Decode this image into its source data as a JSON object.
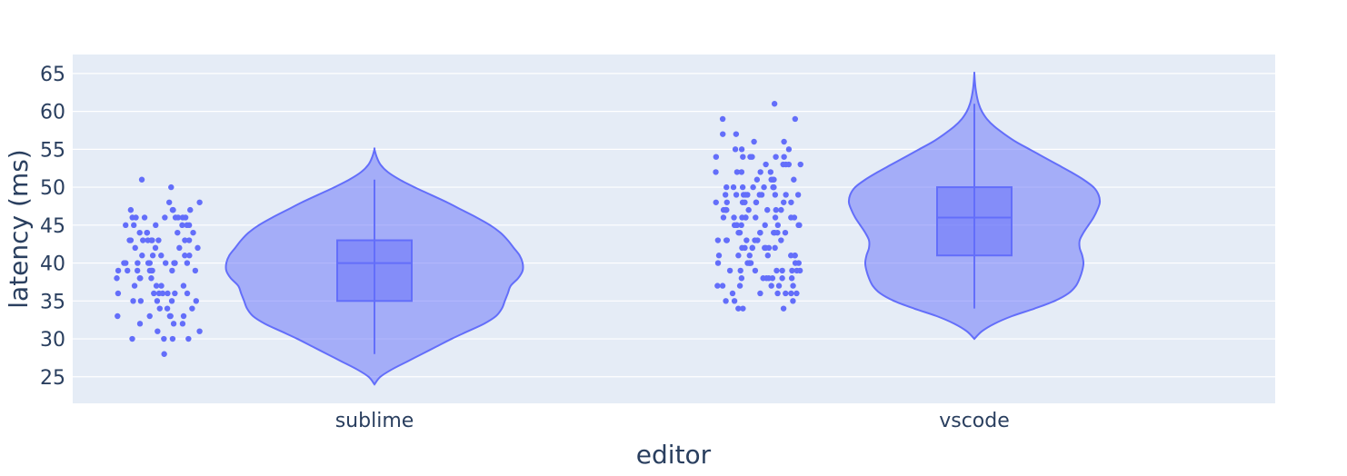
{
  "chart_data": {
    "type": "violin",
    "xlabel": "editor",
    "ylabel": "latency (ms)",
    "categories": [
      "sublime",
      "vscode"
    ],
    "yticks": [
      25,
      30,
      35,
      40,
      45,
      50,
      55,
      60,
      65
    ],
    "yticklabels": [
      "25",
      "30",
      "35",
      "40",
      "45",
      "50",
      "55",
      "60",
      "65"
    ],
    "ylim": [
      21.5,
      67.5
    ],
    "grid": true,
    "show_points": true,
    "show_box": true,
    "colors": {
      "background": "#e5ecf6",
      "gridline": "#ffffff",
      "violin_fill": "#636efa",
      "violin_line": "#636efa",
      "points": "#636efa",
      "text": "#2a3f5f"
    },
    "violins": [
      {
        "category": "sublime",
        "box": {
          "min": 28,
          "q1": 35,
          "median": 40,
          "q3": 43,
          "max": 51
        },
        "kde_extent": [
          24,
          55
        ],
        "density": [
          [
            24,
            0.0
          ],
          [
            25,
            0.04
          ],
          [
            26,
            0.12
          ],
          [
            27,
            0.22
          ],
          [
            28,
            0.32
          ],
          [
            29,
            0.42
          ],
          [
            30,
            0.52
          ],
          [
            31,
            0.63
          ],
          [
            32,
            0.74
          ],
          [
            33,
            0.82
          ],
          [
            34,
            0.86
          ],
          [
            35,
            0.88
          ],
          [
            36,
            0.9
          ],
          [
            37,
            0.92
          ],
          [
            38,
            0.97
          ],
          [
            39,
            1.0
          ],
          [
            40,
            1.0
          ],
          [
            41,
            0.98
          ],
          [
            42,
            0.94
          ],
          [
            43,
            0.9
          ],
          [
            44,
            0.85
          ],
          [
            45,
            0.78
          ],
          [
            46,
            0.69
          ],
          [
            47,
            0.59
          ],
          [
            48,
            0.49
          ],
          [
            49,
            0.38
          ],
          [
            50,
            0.27
          ],
          [
            51,
            0.17
          ],
          [
            52,
            0.09
          ],
          [
            53,
            0.04
          ],
          [
            54,
            0.015
          ],
          [
            55,
            0.0
          ]
        ],
        "points": [
          50,
          51,
          48,
          48,
          47,
          47,
          47,
          47,
          46,
          46,
          46,
          46,
          46,
          46,
          46,
          46,
          45,
          45,
          45,
          45,
          45,
          45,
          44,
          44,
          44,
          44,
          44,
          43,
          43,
          43,
          43,
          43,
          43,
          43,
          43,
          43,
          42,
          42,
          42,
          42,
          41,
          41,
          41,
          41,
          41,
          40,
          40,
          40,
          40,
          40,
          40,
          40,
          40,
          40,
          40,
          39,
          39,
          39,
          39,
          39,
          39,
          39,
          39,
          38,
          38,
          38,
          38,
          37,
          37,
          37,
          37,
          36,
          36,
          36,
          36,
          36,
          36,
          36,
          35,
          35,
          35,
          35,
          35,
          34,
          34,
          34,
          33,
          33,
          33,
          33,
          33,
          32,
          32,
          32,
          31,
          31,
          30,
          30,
          30,
          30,
          28
        ]
      },
      {
        "category": "vscode",
        "box": {
          "min": 34,
          "q1": 41,
          "median": 46,
          "q3": 50,
          "max": 61
        },
        "kde_extent": [
          30,
          65
        ],
        "density": [
          [
            30,
            0.0
          ],
          [
            31,
            0.06
          ],
          [
            32,
            0.16
          ],
          [
            33,
            0.3
          ],
          [
            34,
            0.48
          ],
          [
            35,
            0.64
          ],
          [
            36,
            0.75
          ],
          [
            37,
            0.81
          ],
          [
            38,
            0.84
          ],
          [
            39,
            0.86
          ],
          [
            40,
            0.87
          ],
          [
            41,
            0.86
          ],
          [
            42,
            0.84
          ],
          [
            43,
            0.84
          ],
          [
            44,
            0.87
          ],
          [
            45,
            0.91
          ],
          [
            46,
            0.95
          ],
          [
            47,
            0.98
          ],
          [
            48,
            1.0
          ],
          [
            49,
            0.99
          ],
          [
            50,
            0.95
          ],
          [
            51,
            0.87
          ],
          [
            52,
            0.77
          ],
          [
            53,
            0.66
          ],
          [
            54,
            0.55
          ],
          [
            55,
            0.44
          ],
          [
            56,
            0.33
          ],
          [
            57,
            0.24
          ],
          [
            58,
            0.16
          ],
          [
            59,
            0.1
          ],
          [
            60,
            0.06
          ],
          [
            61,
            0.035
          ],
          [
            62,
            0.02
          ],
          [
            63,
            0.01
          ],
          [
            64,
            0.004
          ],
          [
            65,
            0.0
          ]
        ],
        "points": [
          61,
          59,
          59,
          57,
          57,
          56,
          56,
          55,
          55,
          55,
          54,
          54,
          54,
          54,
          54,
          54,
          53,
          53,
          53,
          53,
          53,
          52,
          52,
          52,
          52,
          52,
          51,
          51,
          51,
          51,
          51,
          50,
          50,
          50,
          50,
          50,
          50,
          50,
          50,
          49,
          49,
          49,
          49,
          49,
          49,
          49,
          49,
          49,
          49,
          48,
          48,
          48,
          48,
          48,
          48,
          48,
          48,
          47,
          47,
          47,
          47,
          47,
          47,
          47,
          47,
          46,
          46,
          46,
          46,
          46,
          46,
          46,
          46,
          46,
          45,
          45,
          45,
          45,
          45,
          45,
          45,
          45,
          44,
          44,
          44,
          44,
          44,
          44,
          44,
          44,
          43,
          43,
          43,
          43,
          43,
          43,
          43,
          42,
          42,
          42,
          42,
          42,
          42,
          42,
          42,
          41,
          41,
          41,
          41,
          41,
          41,
          41,
          40,
          40,
          40,
          40,
          40,
          40,
          40,
          39,
          39,
          39,
          39,
          39,
          39,
          39,
          39,
          38,
          38,
          38,
          38,
          38,
          38,
          38,
          37,
          37,
          37,
          37,
          37,
          37,
          36,
          36,
          36,
          36,
          36,
          36,
          35,
          35,
          35,
          34,
          34,
          34
        ]
      }
    ]
  }
}
